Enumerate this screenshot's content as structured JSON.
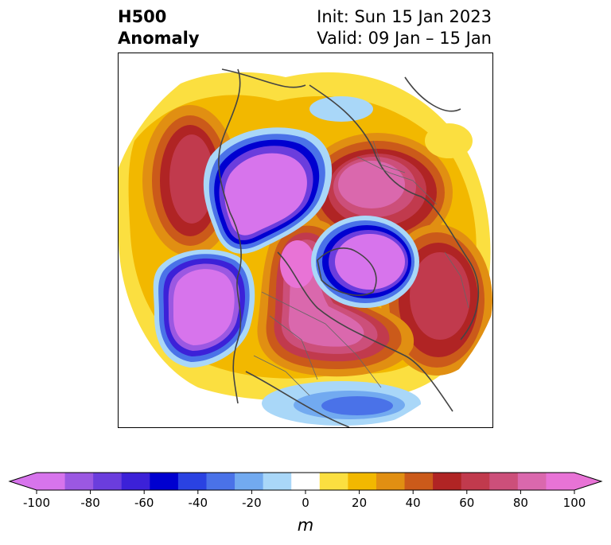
{
  "title": {
    "left_line1": "H500",
    "left_line2": "Anomaly",
    "right_line1": "Init: Sun 15 Jan 2023",
    "right_line2": "Valid: 09 Jan – 15 Jan"
  },
  "map": {
    "projection": "north polar stereographic",
    "field": "500 hPa geopotential height anomaly",
    "features": {
      "negative_centers": [
        "Alaska / Bering Sea",
        "North Pacific",
        "Greenland / Baffin Bay",
        "Svalbard / Norwegian Sea"
      ],
      "positive_centers": [
        "Canada",
        "Central Arctic",
        "Northern Siberia",
        "Kamchatka / Okhotsk Sea",
        "Scandinavia / Northern Russia"
      ]
    }
  },
  "colorbar": {
    "unit": "m",
    "extend": "both",
    "ticks": [
      "-100",
      "-80",
      "-60",
      "-40",
      "-20",
      "0",
      "20",
      "40",
      "60",
      "80",
      "100"
    ],
    "bounds": [
      -100,
      -90,
      -80,
      -70,
      -60,
      -50,
      -40,
      -30,
      -20,
      -10,
      10,
      20,
      30,
      40,
      50,
      60,
      70,
      80,
      90,
      100
    ],
    "colors": [
      "#d774ec",
      "#9b58e2",
      "#6b3ddd",
      "#3c21d8",
      "#0000d0",
      "#2a42e2",
      "#4a72e8",
      "#72aaf0",
      "#a9d7f8",
      "#ffffff",
      "#fbdf40",
      "#f2b800",
      "#e18f12",
      "#cb5a1a",
      "#b02424",
      "#c13a4d",
      "#cc4f7a",
      "#da68ad",
      "#e873d6"
    ],
    "under_color": "#d774ec",
    "over_color": "#e873d6"
  }
}
